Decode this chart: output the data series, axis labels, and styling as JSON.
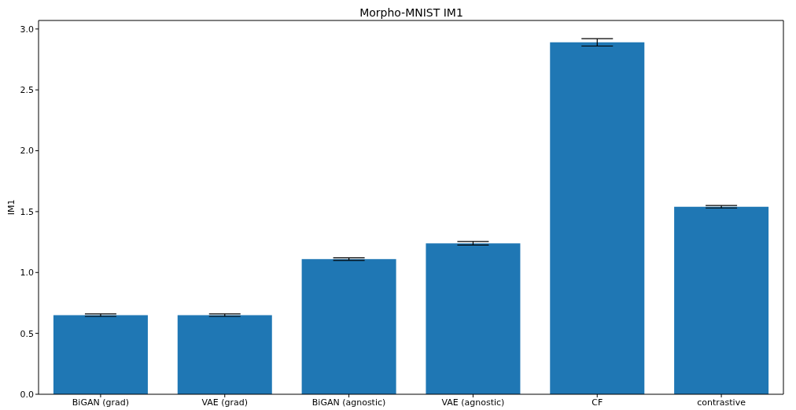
{
  "chart_data": {
    "type": "bar",
    "title": "Morpho-MNIST IM1",
    "ylabel": "IM1",
    "categories": [
      "BiGAN (grad)",
      "VAE (grad)",
      "BiGAN (agnostic)",
      "VAE (agnostic)",
      "CF",
      "contrastive"
    ],
    "values": [
      0.65,
      0.65,
      1.11,
      1.24,
      2.89,
      1.54
    ],
    "errors": [
      0.01,
      0.01,
      0.01,
      0.015,
      0.03,
      0.01
    ],
    "color": "#1f77b4",
    "ylim": [
      0,
      3.07
    ],
    "yticks": [
      {
        "value": 0,
        "label": "0.0"
      },
      0.5,
      {
        "value": 1,
        "label": "1.0"
      },
      1.5,
      {
        "value": 2,
        "label": "2.0"
      },
      2.5,
      {
        "value": 3,
        "label": "3.0"
      }
    ],
    "grid": false
  }
}
